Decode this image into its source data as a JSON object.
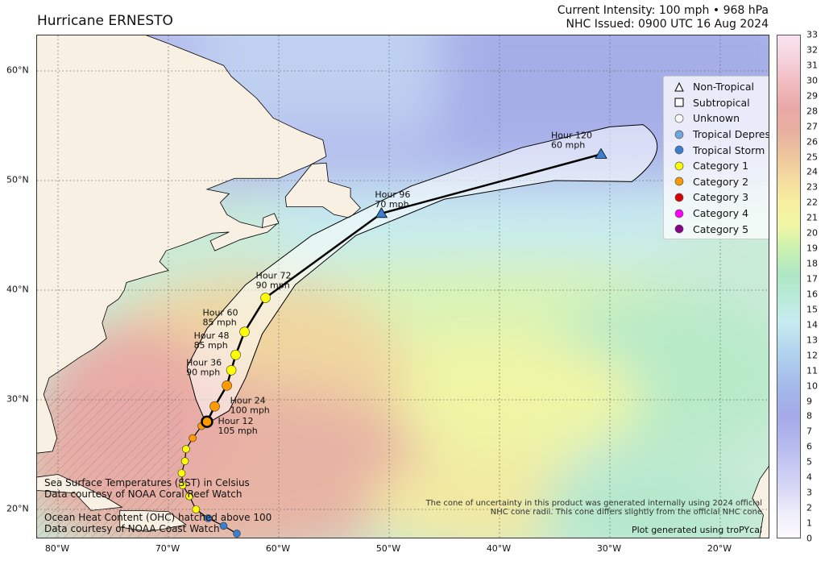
{
  "title": "Hurricane ERNESTO",
  "current_intensity": "Current Intensity: 100 mph • 968 hPa",
  "nhc_issued": "NHC Issued: 0900 UTC 16 Aug 2024",
  "lon_ticks": [
    "80°W",
    "70°W",
    "60°W",
    "50°W",
    "40°W",
    "30°W",
    "20°W"
  ],
  "lat_ticks": [
    "60°N",
    "50°N",
    "40°N",
    "30°N",
    "20°N"
  ],
  "legend": [
    {
      "label": "Non-Tropical",
      "shape": "triangle",
      "color": "#ffffff"
    },
    {
      "label": "Subtropical",
      "shape": "square",
      "color": "#ffffff"
    },
    {
      "label": "Unknown",
      "shape": "circle",
      "color": "#ffffff"
    },
    {
      "label": "Tropical Depression",
      "shape": "circle",
      "color": "#6fa8dc"
    },
    {
      "label": "Tropical Storm",
      "shape": "circle",
      "color": "#3a7fd0"
    },
    {
      "label": "Category 1",
      "shape": "circle",
      "color": "#ffff00"
    },
    {
      "label": "Category 2",
      "shape": "circle",
      "color": "#ff9900"
    },
    {
      "label": "Category 3",
      "shape": "circle",
      "color": "#dd0000"
    },
    {
      "label": "Category 4",
      "shape": "circle",
      "color": "#ff00ff"
    },
    {
      "label": "Category 5",
      "shape": "circle",
      "color": "#8b008b"
    }
  ],
  "colorbar": {
    "ticks": [
      "0",
      "1",
      "2",
      "3",
      "4",
      "5",
      "6",
      "7",
      "8",
      "9",
      "10",
      "11",
      "12",
      "13",
      "14",
      "15",
      "16",
      "17",
      "18",
      "19",
      "20",
      "21",
      "22",
      "23",
      "24",
      "25",
      "26",
      "27",
      "28",
      "29",
      "30",
      "31",
      "32",
      "33"
    ],
    "colors": [
      "#fdf9fd",
      "#efeefb",
      "#d9d9f6",
      "#c6c9f2",
      "#b4b8ee",
      "#a6aaea",
      "#a3b5ea",
      "#a9c6ec",
      "#b5d8ee",
      "#c7ecf1",
      "#b9ebd9",
      "#aee7c5",
      "#c8f0b0",
      "#eff7a5",
      "#f7ef9f",
      "#f5dca0",
      "#eec49c",
      "#e8b0a0",
      "#e9a8a8",
      "#f1bcc0",
      "#f6d2dc",
      "#f9e3ef"
    ]
  },
  "forecast": [
    {
      "hour": "Hour 12",
      "wind": "105 mph",
      "lat": 29.4,
      "lon": -65.8,
      "color": "#ff9900",
      "shape": "circle"
    },
    {
      "hour": "Hour 24",
      "wind": "100 mph",
      "lat": 31.3,
      "lon": -64.7,
      "color": "#ff9900",
      "shape": "circle"
    },
    {
      "hour": "Hour 36",
      "wind": "90 mph",
      "lat": 32.7,
      "lon": -64.3,
      "color": "#ffff00",
      "shape": "circle"
    },
    {
      "hour": "Hour 48",
      "wind": "85 mph",
      "lat": 34.1,
      "lon": -63.9,
      "color": "#ffff00",
      "shape": "circle"
    },
    {
      "hour": "Hour 60",
      "wind": "85 mph",
      "lat": 36.2,
      "lon": -63.1,
      "color": "#ffff00",
      "shape": "circle"
    },
    {
      "hour": "Hour 72",
      "wind": "90 mph",
      "lat": 39.3,
      "lon": -61.2,
      "color": "#ffff00",
      "shape": "circle"
    },
    {
      "hour": "Hour 96",
      "wind": "70 mph",
      "lat": 47.0,
      "lon": -50.7,
      "color": "#3a7fd0",
      "shape": "triangle"
    },
    {
      "hour": "Hour 120",
      "wind": "60 mph",
      "lat": 52.4,
      "lon": -30.8,
      "color": "#3a7fd0",
      "shape": "triangle"
    }
  ],
  "current_position": {
    "lat": 28.0,
    "lon": -66.5,
    "color": "#ff9900"
  },
  "past_track": [
    {
      "lat": 27.6,
      "lon": -67.0,
      "color": "#ff9900"
    },
    {
      "lat": 26.5,
      "lon": -67.8,
      "color": "#ff9900"
    },
    {
      "lat": 25.5,
      "lon": -68.4,
      "color": "#ffff00"
    },
    {
      "lat": 24.4,
      "lon": -68.5,
      "color": "#ffff00"
    },
    {
      "lat": 23.3,
      "lon": -68.8,
      "color": "#ffff00"
    },
    {
      "lat": 22.2,
      "lon": -68.7,
      "color": "#ffff00"
    },
    {
      "lat": 21.2,
      "lon": -68.1,
      "color": "#ffff00"
    },
    {
      "lat": 20.0,
      "lon": -67.5,
      "color": "#ffff00"
    },
    {
      "lat": 19.2,
      "lon": -66.4,
      "color": "#3a7fd0"
    },
    {
      "lat": 18.5,
      "lon": -65.0,
      "color": "#3a7fd0"
    },
    {
      "lat": 17.8,
      "lon": -63.8,
      "color": "#3a7fd0"
    }
  ],
  "notes": {
    "sst_line1": "Sea Surface Temperatures (SST) in Celsius",
    "sst_line2": "Data courtesy of NOAA Coral Reef Watch",
    "ohc_line1": "Ocean Heat Content (OHC) hatched above 100",
    "ohc_line2": "Data courtesy of NOAA Coast Watch",
    "cone_line1": "The cone of uncertainty in this product was generated internally using 2024 official",
    "cone_line2": "NHC cone radii. This cone differs slightly from the official NHC cone",
    "credit": "Plot generated using troPYcal"
  }
}
